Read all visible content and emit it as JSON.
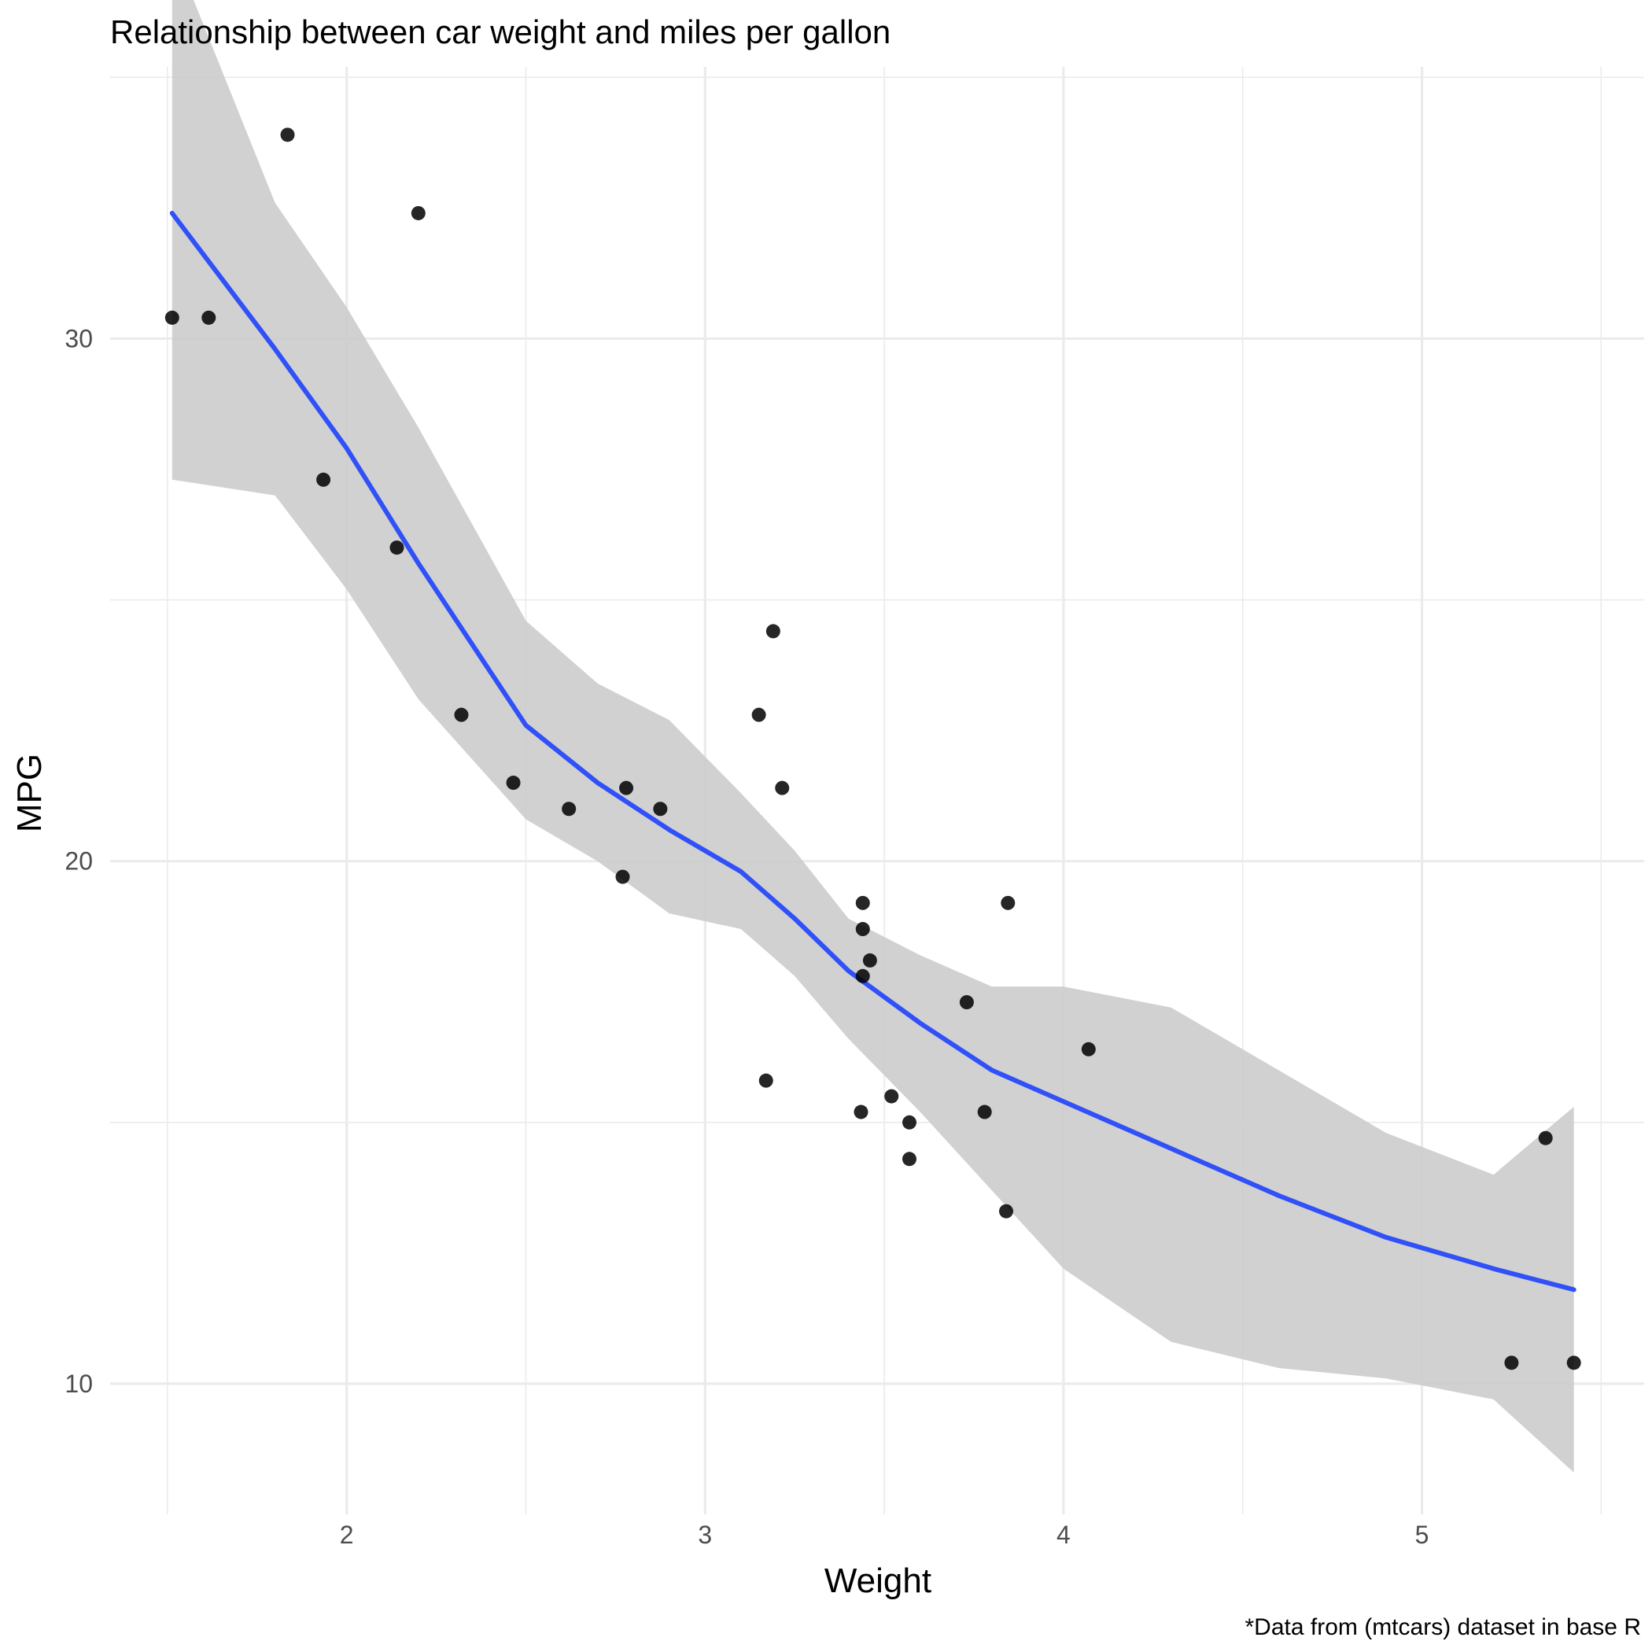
{
  "chart_data": {
    "type": "scatter",
    "title": "Relationship between car weight and miles per gallon",
    "xlabel": "Weight",
    "ylabel": "MPG",
    "caption": "*Data from (mtcars) dataset in base R",
    "xlim": [
      1.34,
      5.62
    ],
    "ylim": [
      7.5,
      35.2
    ],
    "x_ticks": [
      2,
      3,
      4,
      5
    ],
    "y_ticks": [
      10,
      20,
      30
    ],
    "grid": true,
    "colors": {
      "points": "#000000",
      "smooth_line": "#3050f8",
      "confidence_band": "#cccccc",
      "grid": "#ebebeb"
    },
    "points": [
      {
        "x": 2.62,
        "y": 21.0
      },
      {
        "x": 2.875,
        "y": 21.0
      },
      {
        "x": 2.32,
        "y": 22.8
      },
      {
        "x": 3.215,
        "y": 21.4
      },
      {
        "x": 3.44,
        "y": 18.7
      },
      {
        "x": 3.46,
        "y": 18.1
      },
      {
        "x": 3.57,
        "y": 14.3
      },
      {
        "x": 3.19,
        "y": 24.4
      },
      {
        "x": 3.15,
        "y": 22.8
      },
      {
        "x": 3.44,
        "y": 19.2
      },
      {
        "x": 3.44,
        "y": 17.8
      },
      {
        "x": 4.07,
        "y": 16.4
      },
      {
        "x": 3.73,
        "y": 17.3
      },
      {
        "x": 3.78,
        "y": 15.2
      },
      {
        "x": 5.25,
        "y": 10.4
      },
      {
        "x": 5.424,
        "y": 10.4
      },
      {
        "x": 5.345,
        "y": 14.7
      },
      {
        "x": 2.2,
        "y": 32.4
      },
      {
        "x": 1.615,
        "y": 30.4
      },
      {
        "x": 1.835,
        "y": 33.9
      },
      {
        "x": 2.465,
        "y": 21.5
      },
      {
        "x": 3.52,
        "y": 15.5
      },
      {
        "x": 3.435,
        "y": 15.2
      },
      {
        "x": 3.84,
        "y": 13.3
      },
      {
        "x": 3.845,
        "y": 19.2
      },
      {
        "x": 1.935,
        "y": 27.3
      },
      {
        "x": 2.14,
        "y": 26.0
      },
      {
        "x": 1.513,
        "y": 30.4
      },
      {
        "x": 3.17,
        "y": 15.8
      },
      {
        "x": 2.77,
        "y": 19.7
      },
      {
        "x": 3.57,
        "y": 15.0
      },
      {
        "x": 2.78,
        "y": 21.4
      }
    ],
    "smooth": {
      "method": "loess",
      "x": [
        1.513,
        1.8,
        2.0,
        2.2,
        2.5,
        2.7,
        2.9,
        3.1,
        3.25,
        3.4,
        3.6,
        3.8,
        4.0,
        4.3,
        4.6,
        4.9,
        5.2,
        5.424
      ],
      "y": [
        32.4,
        29.8,
        27.9,
        25.7,
        22.6,
        21.5,
        20.6,
        19.8,
        18.9,
        17.9,
        16.9,
        16.0,
        15.4,
        14.5,
        13.6,
        12.8,
        12.2,
        11.8
      ],
      "lower": [
        27.3,
        27.0,
        25.2,
        23.1,
        20.8,
        20.0,
        19.0,
        18.7,
        17.8,
        16.6,
        15.2,
        13.7,
        12.2,
        10.8,
        10.3,
        10.1,
        9.7,
        8.3
      ],
      "upper": [
        37.5,
        32.6,
        30.6,
        28.3,
        24.6,
        23.4,
        22.7,
        21.3,
        20.2,
        18.9,
        18.2,
        17.6,
        17.6,
        17.2,
        16.0,
        14.8,
        14.0,
        15.3
      ]
    }
  }
}
